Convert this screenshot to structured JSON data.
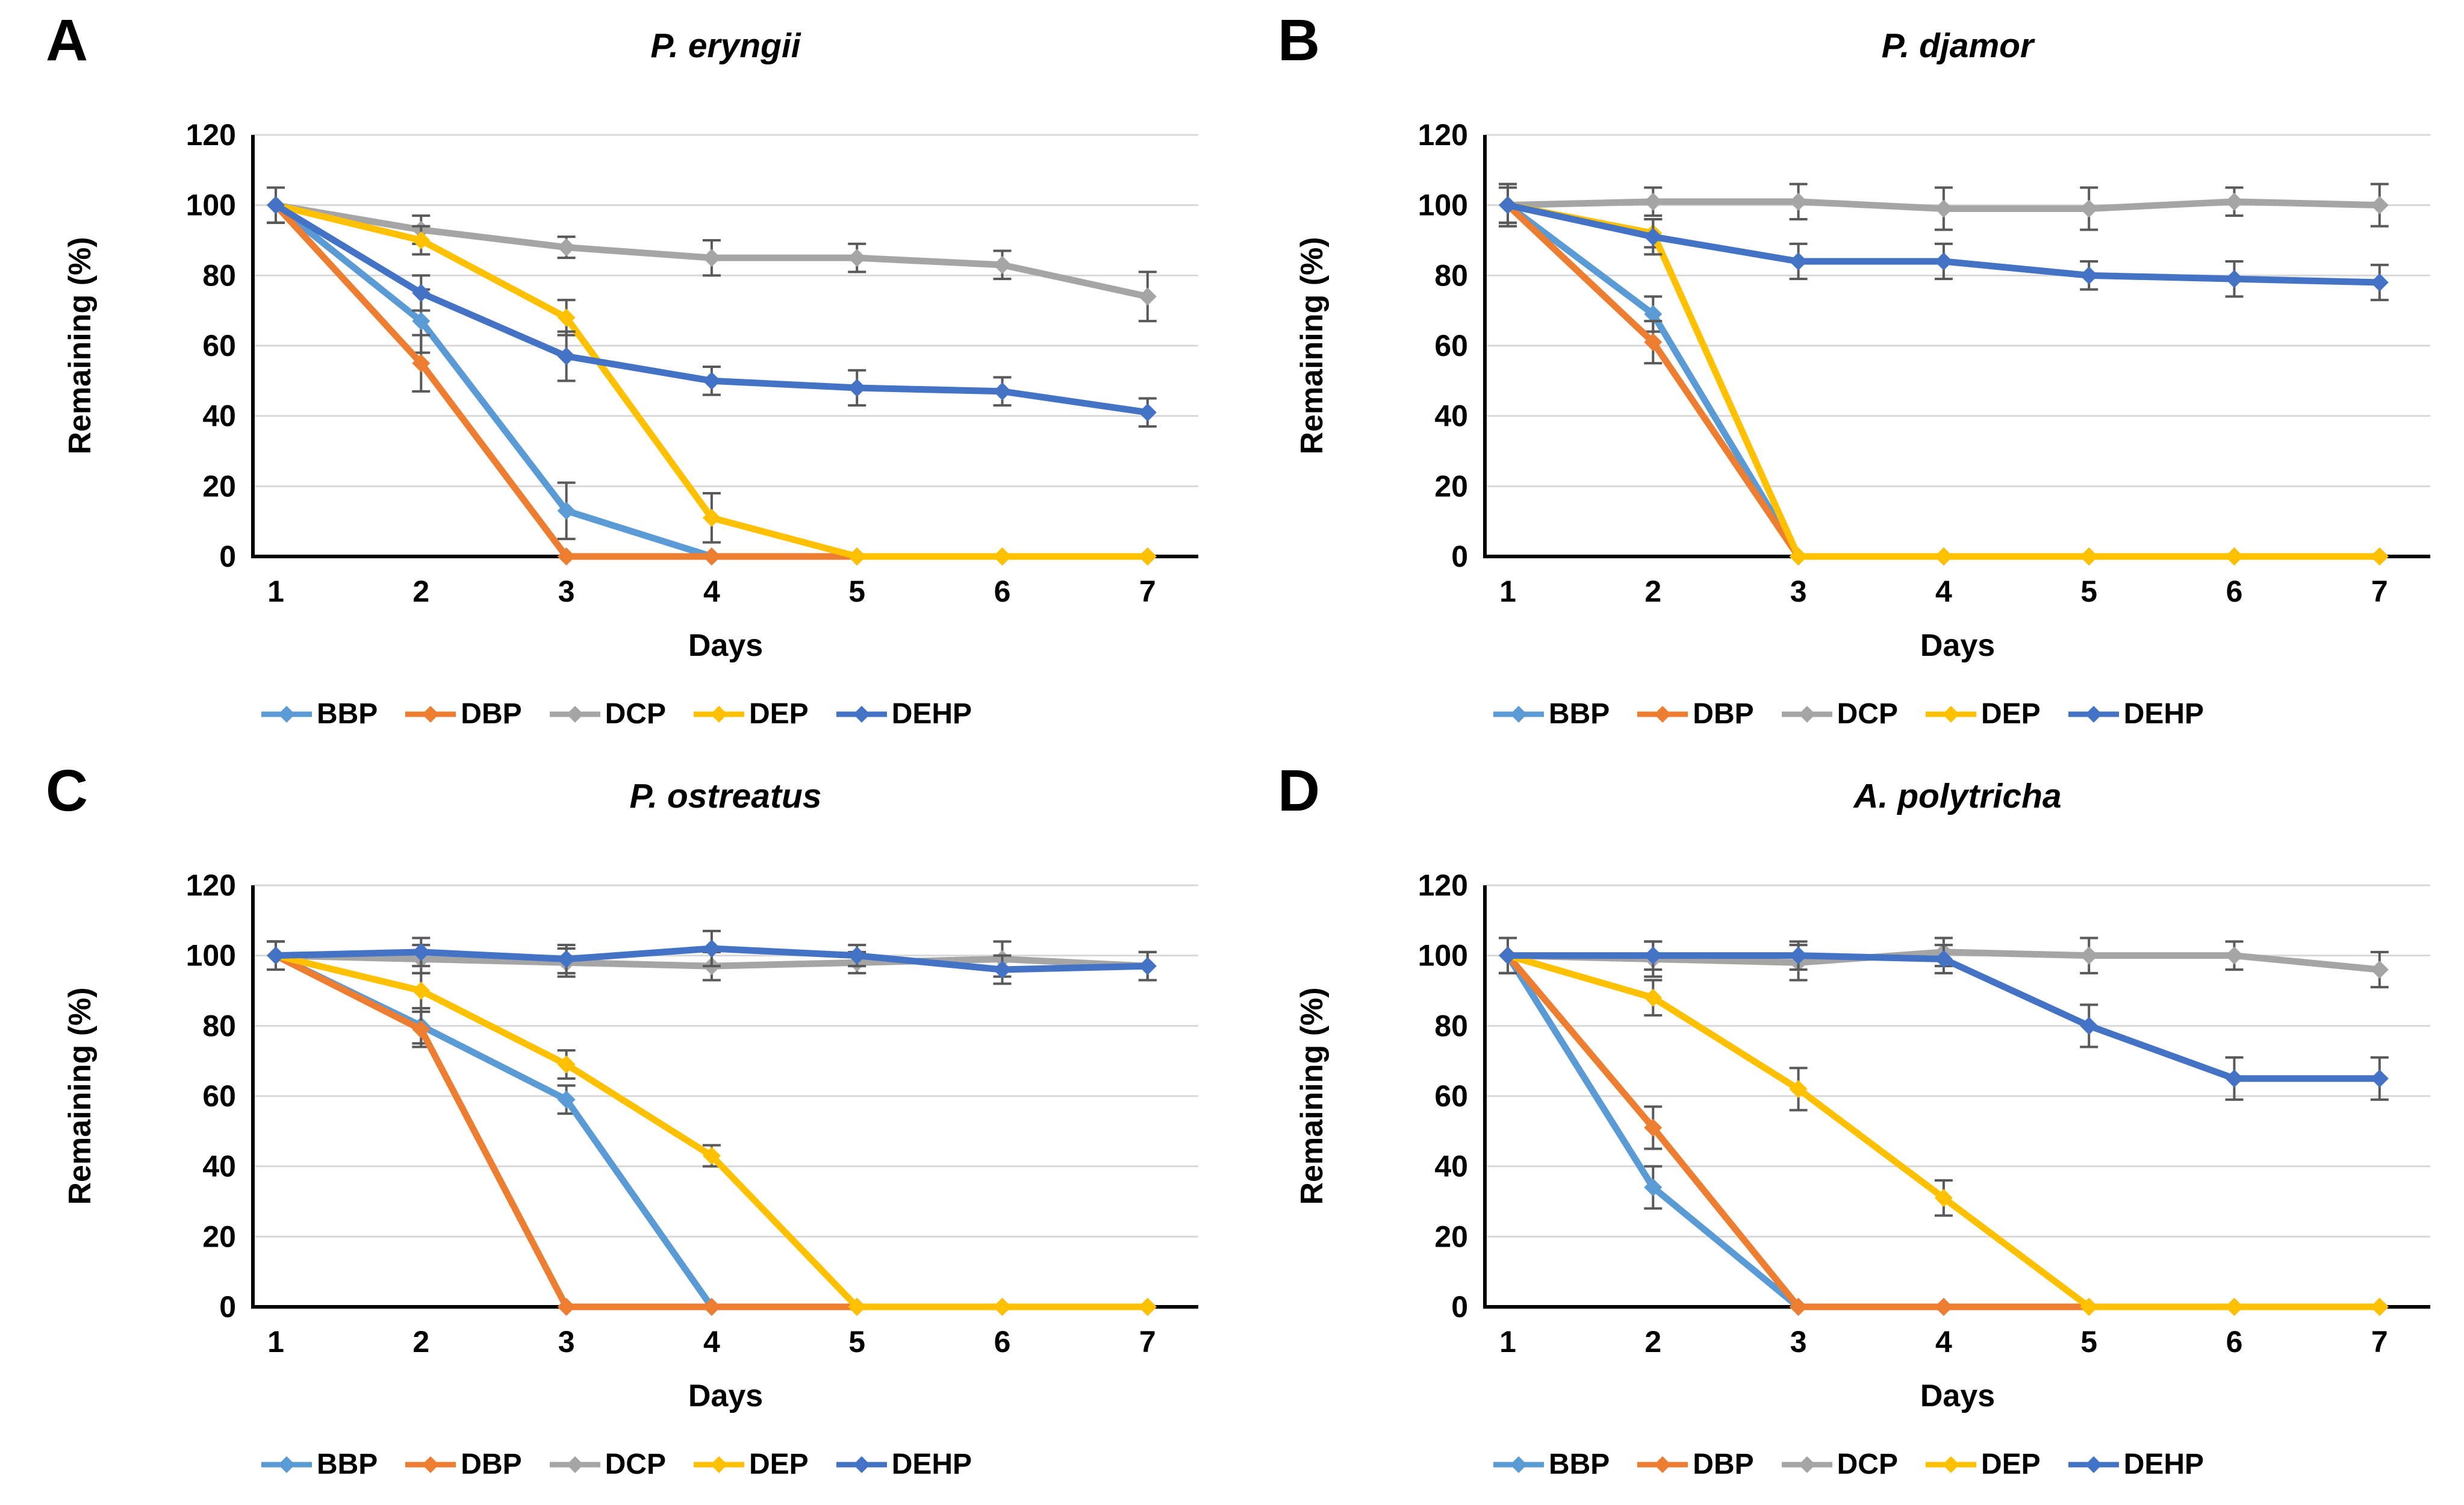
{
  "figure": {
    "background": "#FFFFFF"
  },
  "style": {
    "gridline_color": "#D9D9D9",
    "axis_color": "#000000",
    "error_bar_color": "#595959",
    "text_color": "#000000"
  },
  "axis": {
    "y_label": "Remaining (%)",
    "x_label": "Days",
    "y_ticks": [
      120,
      100,
      80,
      60,
      40,
      20,
      0
    ],
    "x_ticks": [
      1,
      2,
      3,
      4,
      5,
      6,
      7
    ],
    "ylim": [
      0,
      120
    ]
  },
  "legend": {
    "labels": [
      "BBP",
      "DBP",
      "DCP",
      "DEP",
      "DEHP"
    ],
    "colors": {
      "BBP": "#5B9BD5",
      "DBP": "#ED7D31",
      "DCP": "#A5A5A5",
      "DEP": "#FFC000",
      "DEHP": "#4472C4"
    }
  },
  "chart_data": [
    {
      "panel_letter": "A",
      "title": "P. eryngii",
      "type": "line",
      "x": [
        1,
        2,
        3,
        4,
        5,
        6,
        7
      ],
      "xlabel": "Days",
      "ylabel": "Remaining (%)",
      "ylim": [
        0,
        120
      ],
      "grid": true,
      "legend_position": "bottom",
      "series": [
        {
          "name": "BBP",
          "color": "#5B9BD5",
          "values": [
            100,
            67,
            13,
            0,
            0,
            0,
            0
          ],
          "errors": [
            5,
            9,
            8,
            0,
            0,
            0,
            0
          ]
        },
        {
          "name": "DBP",
          "color": "#ED7D31",
          "values": [
            100,
            55,
            0,
            0,
            0,
            0,
            0
          ],
          "errors": [
            5,
            8,
            0,
            0,
            0,
            0,
            0
          ]
        },
        {
          "name": "DCP",
          "color": "#A5A5A5",
          "values": [
            100,
            93,
            88,
            85,
            85,
            83,
            74
          ],
          "errors": [
            5,
            4,
            3,
            5,
            4,
            4,
            7
          ]
        },
        {
          "name": "DEP",
          "color": "#FFC000",
          "values": [
            100,
            90,
            68,
            11,
            0,
            0,
            0
          ],
          "errors": [
            5,
            4,
            5,
            7,
            0,
            0,
            0
          ]
        },
        {
          "name": "DEHP",
          "color": "#4472C4",
          "values": [
            100,
            75,
            57,
            50,
            48,
            47,
            41
          ],
          "errors": [
            5,
            5,
            7,
            4,
            5,
            4,
            4
          ]
        }
      ]
    },
    {
      "panel_letter": "B",
      "title": "P. djamor",
      "type": "line",
      "x": [
        1,
        2,
        3,
        4,
        5,
        6,
        7
      ],
      "xlabel": "Days",
      "ylabel": "Remaining (%)",
      "ylim": [
        0,
        120
      ],
      "grid": true,
      "legend_position": "bottom",
      "series": [
        {
          "name": "BBP",
          "color": "#5B9BD5",
          "values": [
            100,
            69,
            0,
            0,
            0,
            0,
            0
          ],
          "errors": [
            6,
            5,
            0,
            0,
            0,
            0,
            0
          ]
        },
        {
          "name": "DBP",
          "color": "#ED7D31",
          "values": [
            100,
            61,
            0,
            0,
            0,
            0,
            0
          ],
          "errors": [
            6,
            6,
            0,
            0,
            0,
            0,
            0
          ]
        },
        {
          "name": "DCP",
          "color": "#A5A5A5",
          "values": [
            100,
            101,
            101,
            99,
            99,
            101,
            100
          ],
          "errors": [
            5,
            4,
            5,
            6,
            6,
            4,
            6
          ]
        },
        {
          "name": "DEP",
          "color": "#FFC000",
          "values": [
            100,
            92,
            0,
            0,
            0,
            0,
            0
          ],
          "errors": [
            5,
            4,
            0,
            0,
            0,
            0,
            0
          ]
        },
        {
          "name": "DEHP",
          "color": "#4472C4",
          "values": [
            100,
            91,
            84,
            84,
            80,
            79,
            78
          ],
          "errors": [
            5,
            5,
            5,
            5,
            4,
            5,
            5
          ]
        }
      ]
    },
    {
      "panel_letter": "C",
      "title": "P. ostreatus",
      "type": "line",
      "x": [
        1,
        2,
        3,
        4,
        5,
        6,
        7
      ],
      "xlabel": "Days",
      "ylabel": "Remaining (%)",
      "ylim": [
        0,
        120
      ],
      "grid": true,
      "legend_position": "bottom",
      "series": [
        {
          "name": "BBP",
          "color": "#5B9BD5",
          "values": [
            100,
            80,
            59,
            0,
            0,
            0,
            0
          ],
          "errors": [
            4,
            5,
            4,
            0,
            0,
            0,
            0
          ]
        },
        {
          "name": "DBP",
          "color": "#ED7D31",
          "values": [
            100,
            79,
            0,
            0,
            0,
            0,
            0
          ],
          "errors": [
            4,
            5,
            0,
            0,
            0,
            0,
            0
          ]
        },
        {
          "name": "DCP",
          "color": "#A5A5A5",
          "values": [
            100,
            99,
            98,
            97,
            98,
            99,
            97
          ],
          "errors": [
            4,
            4,
            4,
            4,
            3,
            5,
            4
          ]
        },
        {
          "name": "DEP",
          "color": "#FFC000",
          "values": [
            100,
            90,
            69,
            43,
            0,
            0,
            0
          ],
          "errors": [
            4,
            5,
            4,
            3,
            0,
            0,
            0
          ]
        },
        {
          "name": "DEHP",
          "color": "#4472C4",
          "values": [
            100,
            101,
            99,
            102,
            100,
            96,
            97
          ],
          "errors": [
            4,
            4,
            4,
            5,
            3,
            4,
            4
          ]
        }
      ]
    },
    {
      "panel_letter": "D",
      "title": "A. polytricha",
      "type": "line",
      "x": [
        1,
        2,
        3,
        4,
        5,
        6,
        7
      ],
      "xlabel": "Days",
      "ylabel": "Remaining (%)",
      "ylim": [
        0,
        120
      ],
      "grid": true,
      "legend_position": "bottom",
      "series": [
        {
          "name": "BBP",
          "color": "#5B9BD5",
          "values": [
            100,
            34,
            0,
            0,
            0,
            0,
            0
          ],
          "errors": [
            5,
            6,
            0,
            0,
            0,
            0,
            0
          ]
        },
        {
          "name": "DBP",
          "color": "#ED7D31",
          "values": [
            100,
            51,
            0,
            0,
            0,
            0,
            0
          ],
          "errors": [
            5,
            6,
            0,
            0,
            0,
            0,
            0
          ]
        },
        {
          "name": "DCP",
          "color": "#A5A5A5",
          "values": [
            100,
            99,
            98,
            101,
            100,
            100,
            96
          ],
          "errors": [
            5,
            5,
            5,
            4,
            5,
            4,
            5
          ]
        },
        {
          "name": "DEP",
          "color": "#FFC000",
          "values": [
            100,
            88,
            62,
            31,
            0,
            0,
            0
          ],
          "errors": [
            5,
            5,
            6,
            5,
            0,
            0,
            0
          ]
        },
        {
          "name": "DEHP",
          "color": "#4472C4",
          "values": [
            100,
            100,
            100,
            99,
            80,
            65,
            65
          ],
          "errors": [
            5,
            4,
            4,
            4,
            6,
            6,
            6
          ]
        }
      ]
    }
  ]
}
